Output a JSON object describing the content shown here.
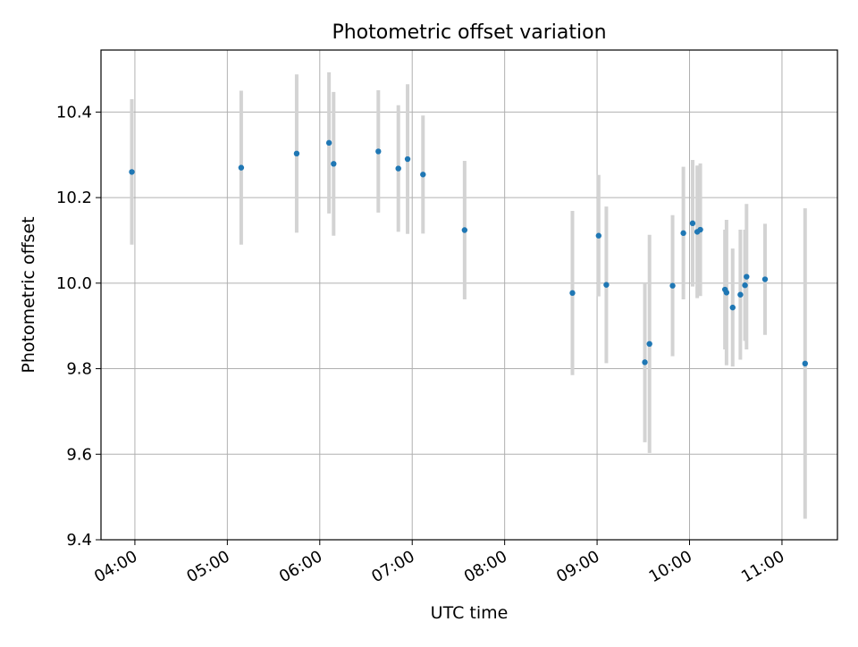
{
  "chart_data": {
    "type": "scatter",
    "title": "Photometric offset variation",
    "xlabel": "UTC time",
    "ylabel": "Photometric offset",
    "xlim": [
      "03:38",
      "11:36"
    ],
    "ylim": [
      9.4,
      10.545
    ],
    "x_ticks": [
      "04:00",
      "05:00",
      "06:00",
      "07:00",
      "08:00",
      "09:00",
      "10:00",
      "11:00"
    ],
    "y_ticks": [
      9.4,
      9.6,
      9.8,
      10.0,
      10.2,
      10.4
    ],
    "grid": true,
    "legend": "none",
    "colors": {
      "marker": "#1f77b4",
      "errorbar": "#d3d3d3",
      "grid": "#b0b0b0"
    },
    "series": [
      {
        "points": [
          {
            "t": "03:58",
            "y": 10.26,
            "err": 0.17
          },
          {
            "t": "05:09",
            "y": 10.27,
            "err": 0.18
          },
          {
            "t": "05:45",
            "y": 10.303,
            "err": 0.185
          },
          {
            "t": "06:06",
            "y": 10.328,
            "err": 0.165
          },
          {
            "t": "06:09",
            "y": 10.279,
            "err": 0.168
          },
          {
            "t": "06:38",
            "y": 10.308,
            "err": 0.143
          },
          {
            "t": "06:51",
            "y": 10.268,
            "err": 0.148
          },
          {
            "t": "06:57",
            "y": 10.29,
            "err": 0.175
          },
          {
            "t": "07:07",
            "y": 10.254,
            "err": 0.138
          },
          {
            "t": "07:34",
            "y": 10.124,
            "err": 0.162
          },
          {
            "t": "08:44",
            "y": 9.977,
            "err": 0.192
          },
          {
            "t": "09:01",
            "y": 10.111,
            "err": 0.142
          },
          {
            "t": "09:06",
            "y": 9.996,
            "err": 0.183
          },
          {
            "t": "09:31",
            "y": 9.815,
            "err": 0.187
          },
          {
            "t": "09:34",
            "y": 9.858,
            "err": 0.255
          },
          {
            "t": "09:49",
            "y": 9.994,
            "err": 0.165
          },
          {
            "t": "09:56",
            "y": 10.117,
            "err": 0.155
          },
          {
            "t": "10:02",
            "y": 10.14,
            "err": 0.148
          },
          {
            "t": "10:05",
            "y": 10.12,
            "err": 0.155
          },
          {
            "t": "10:07",
            "y": 10.125,
            "err": 0.155
          },
          {
            "t": "10:23",
            "y": 9.985,
            "err": 0.14
          },
          {
            "t": "10:24",
            "y": 9.978,
            "err": 0.17
          },
          {
            "t": "10:28",
            "y": 9.943,
            "err": 0.138
          },
          {
            "t": "10:33",
            "y": 9.973,
            "err": 0.152
          },
          {
            "t": "10:36",
            "y": 9.995,
            "err": 0.13
          },
          {
            "t": "10:37",
            "y": 10.015,
            "err": 0.17
          },
          {
            "t": "10:49",
            "y": 10.009,
            "err": 0.13
          },
          {
            "t": "11:15",
            "y": 9.812,
            "err": 0.363
          }
        ]
      }
    ]
  }
}
